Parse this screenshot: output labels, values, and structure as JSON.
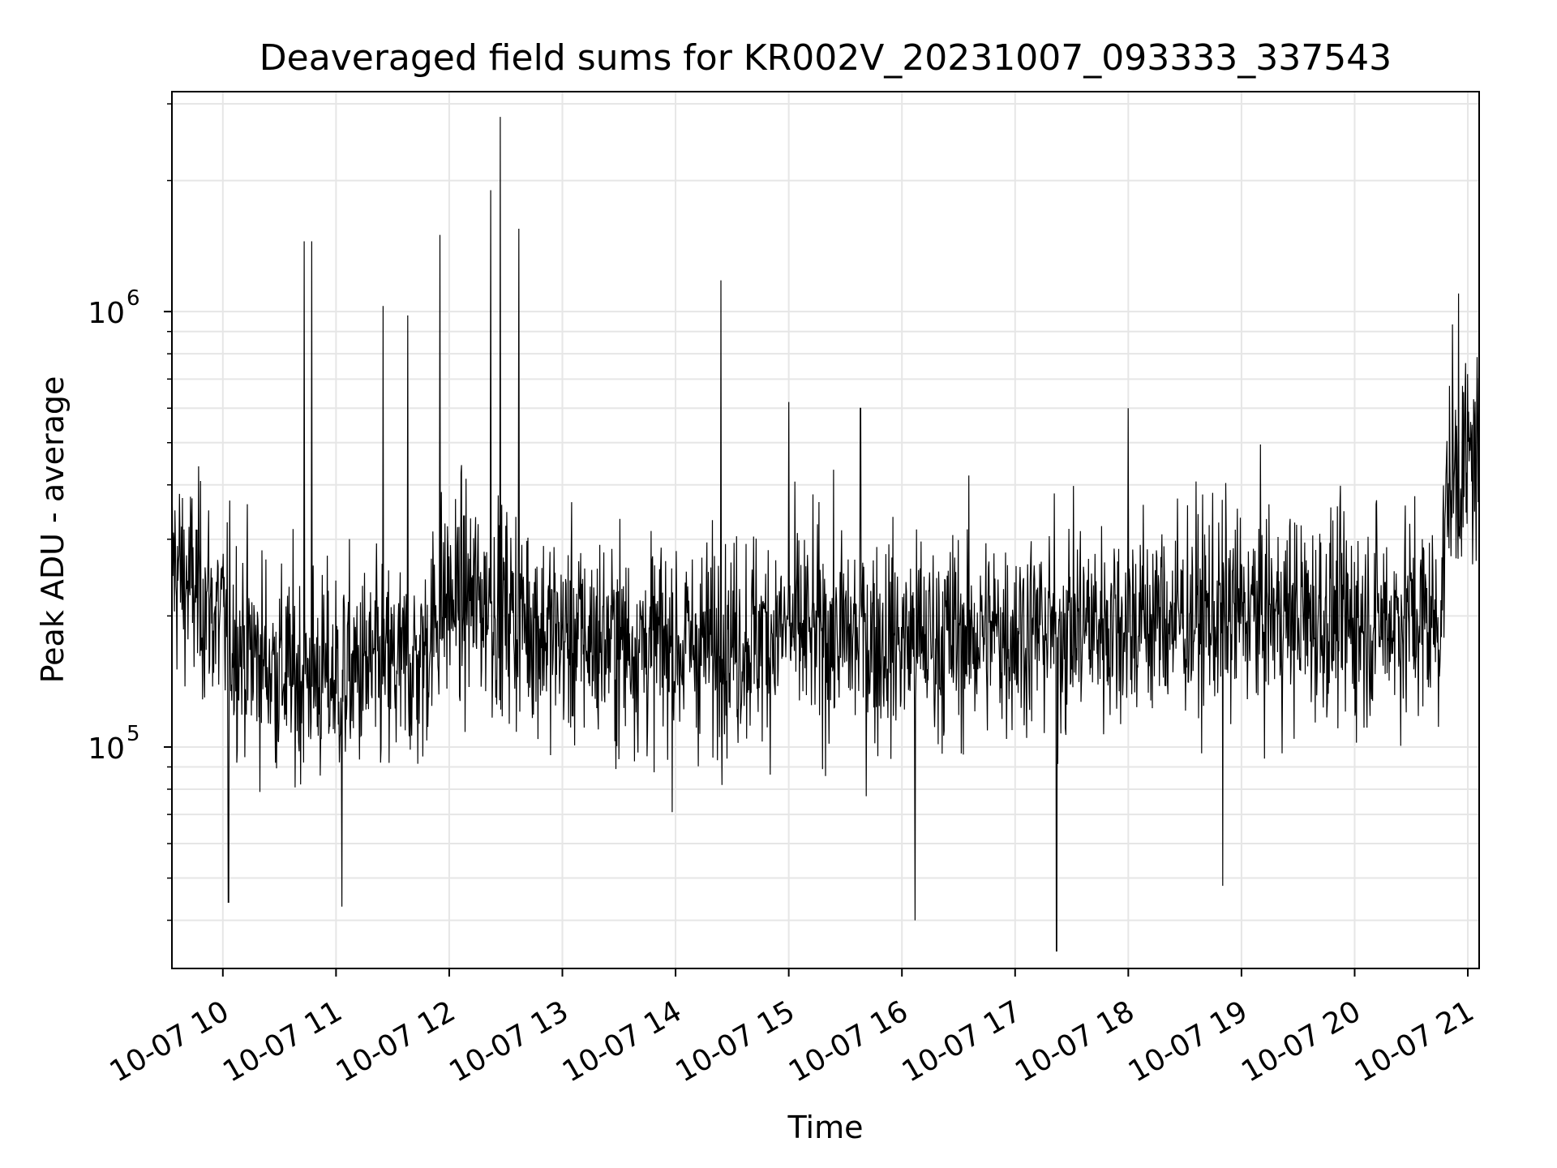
{
  "chart_data": {
    "type": "line",
    "title": "Deaveraged field sums for KR002V_20231007_093333_337543",
    "xlabel": "Time",
    "ylabel": "Peak ADU - average",
    "xscale": "time",
    "yscale": "log",
    "grid": true,
    "line_color": "#000000",
    "xlim": [
      "2023-10-07T09:33",
      "2023-10-07T21:06"
    ],
    "ylim": [
      31000,
      3200000
    ],
    "x_ticks": [
      {
        "value": "2023-10-07T10:00",
        "label": "10-07 10"
      },
      {
        "value": "2023-10-07T11:00",
        "label": "10-07 11"
      },
      {
        "value": "2023-10-07T12:00",
        "label": "10-07 12"
      },
      {
        "value": "2023-10-07T13:00",
        "label": "10-07 13"
      },
      {
        "value": "2023-10-07T14:00",
        "label": "10-07 14"
      },
      {
        "value": "2023-10-07T15:00",
        "label": "10-07 15"
      },
      {
        "value": "2023-10-07T16:00",
        "label": "10-07 16"
      },
      {
        "value": "2023-10-07T17:00",
        "label": "10-07 17"
      },
      {
        "value": "2023-10-07T18:00",
        "label": "10-07 18"
      },
      {
        "value": "2023-10-07T19:00",
        "label": "10-07 19"
      },
      {
        "value": "2023-10-07T20:00",
        "label": "10-07 20"
      },
      {
        "value": "2023-10-07T21:00",
        "label": "10-07 21"
      }
    ],
    "y_ticks": [
      {
        "value": 100000,
        "base": "10",
        "exp": "5"
      },
      {
        "value": 1000000,
        "base": "10",
        "exp": "6"
      }
    ],
    "series": [
      {
        "x": [
          "2023-10-07T09:33",
          "2023-10-07T09:40",
          "2023-10-07T09:50",
          "2023-10-07T10:00",
          "2023-10-07T10:15",
          "2023-10-07T10:30",
          "2023-10-07T10:45",
          "2023-10-07T11:00",
          "2023-10-07T11:15",
          "2023-10-07T11:30",
          "2023-10-07T11:45",
          "2023-10-07T11:55",
          "2023-10-07T12:10",
          "2023-10-07T12:25",
          "2023-10-07T12:40",
          "2023-10-07T12:50",
          "2023-10-07T13:00",
          "2023-10-07T13:30",
          "2023-10-07T14:00",
          "2023-10-07T14:30",
          "2023-10-07T15:00",
          "2023-10-07T15:30",
          "2023-10-07T16:00",
          "2023-10-07T16:30",
          "2023-10-07T17:00",
          "2023-10-07T17:30",
          "2023-10-07T18:00",
          "2023-10-07T18:30",
          "2023-10-07T19:00",
          "2023-10-07T19:30",
          "2023-10-07T20:00",
          "2023-10-07T20:30",
          "2023-10-07T20:45",
          "2023-10-07T20:50",
          "2023-10-07T21:00",
          "2023-10-07T21:06"
        ],
        "y": [
          270000,
          240000,
          220000,
          190000,
          165000,
          150000,
          145000,
          145000,
          150000,
          150000,
          155000,
          215000,
          220000,
          210000,
          200000,
          185000,
          180000,
          175000,
          170000,
          175000,
          185000,
          180000,
          175000,
          180000,
          185000,
          190000,
          195000,
          200000,
          205000,
          200000,
          195000,
          200000,
          195000,
          420000,
          450000,
          470000
        ]
      }
    ],
    "spikes_up": [
      {
        "x": "2023-10-07T10:43",
        "y": 1450000
      },
      {
        "x": "2023-10-07T10:47",
        "y": 1450000
      },
      {
        "x": "2023-10-07T11:25",
        "y": 1030000
      },
      {
        "x": "2023-10-07T11:38",
        "y": 980000
      },
      {
        "x": "2023-10-07T11:55",
        "y": 1500000
      },
      {
        "x": "2023-10-07T12:22",
        "y": 1900000
      },
      {
        "x": "2023-10-07T12:27",
        "y": 2800000
      },
      {
        "x": "2023-10-07T12:37",
        "y": 1550000
      },
      {
        "x": "2023-10-07T14:24",
        "y": 1180000
      },
      {
        "x": "2023-10-07T15:00",
        "y": 620000
      },
      {
        "x": "2023-10-07T15:38",
        "y": 600000
      },
      {
        "x": "2023-10-07T18:00",
        "y": 600000
      },
      {
        "x": "2023-10-07T20:55",
        "y": 1100000
      }
    ],
    "spikes_down": [
      {
        "x": "2023-10-07T10:03",
        "y": 44000
      },
      {
        "x": "2023-10-07T11:03",
        "y": 43000
      },
      {
        "x": "2023-10-07T16:07",
        "y": 40000
      },
      {
        "x": "2023-10-07T17:22",
        "y": 34000
      },
      {
        "x": "2023-10-07T18:50",
        "y": 48000
      }
    ]
  }
}
